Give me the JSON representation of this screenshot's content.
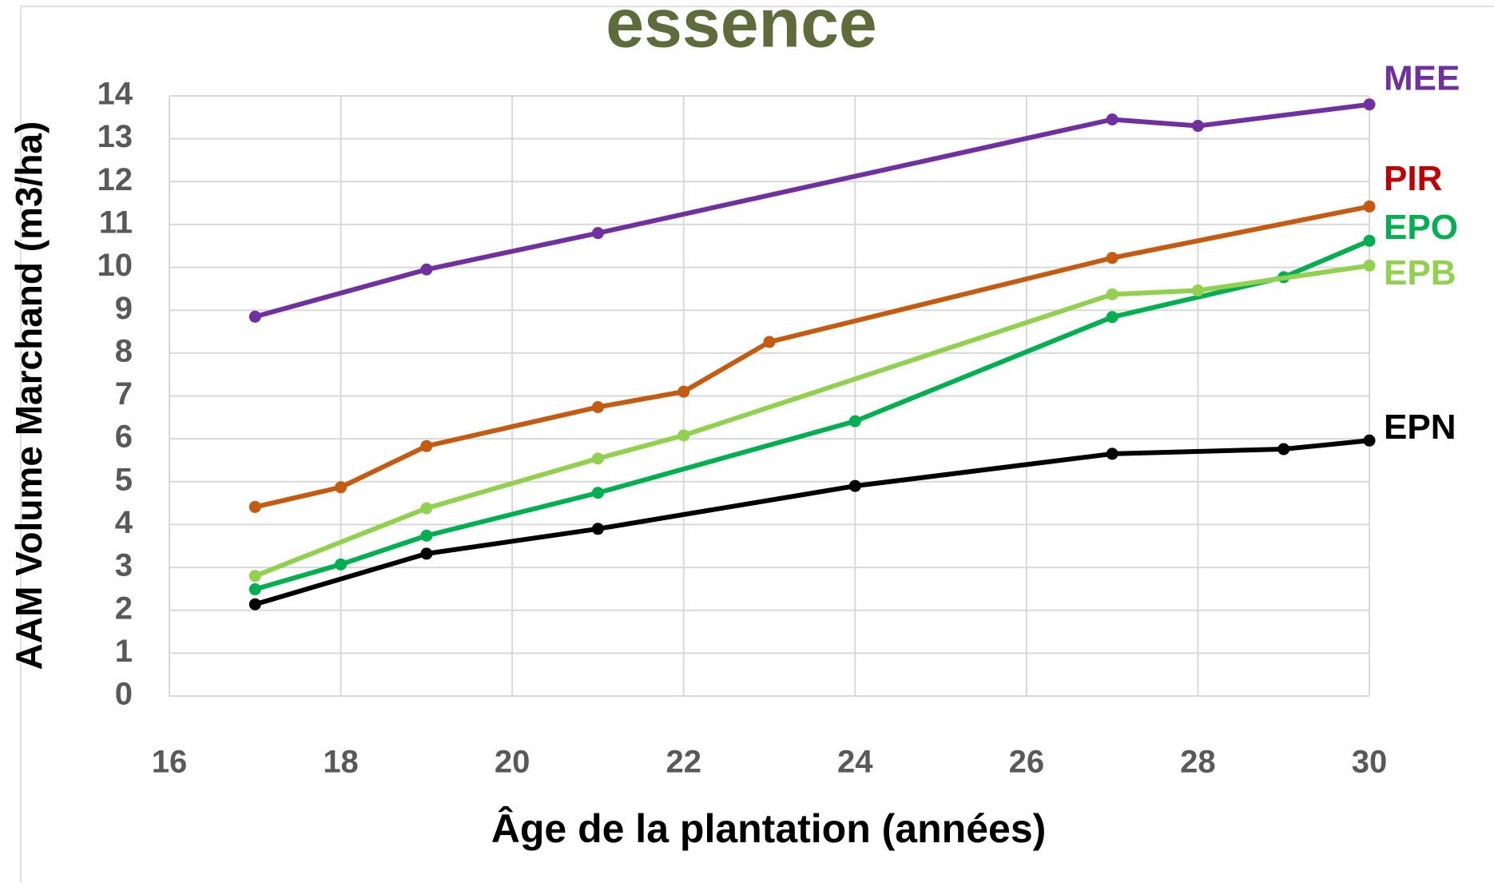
{
  "chart_data": {
    "type": "line",
    "title": "essence",
    "xlabel": "Âge de la plantation (années)",
    "ylabel": "AAM Volume Marchand (m3/ha)",
    "xlim": [
      16,
      30
    ],
    "xticks": [
      16,
      18,
      20,
      22,
      24,
      26,
      28,
      30
    ],
    "ylim": [
      0,
      14
    ],
    "yticks": [
      0,
      1,
      2,
      3,
      4,
      5,
      6,
      7,
      8,
      9,
      10,
      11,
      12,
      13,
      14
    ],
    "grid": true,
    "series": [
      {
        "name": "MEE",
        "color": "#7030a0",
        "label_color": "#7030a0",
        "x": [
          17,
          19,
          21,
          27,
          28,
          30
        ],
        "values": [
          8.85,
          9.95,
          10.8,
          13.45,
          13.3,
          13.8
        ]
      },
      {
        "name": "PIR",
        "color": "#c55a11",
        "label_color": "#c00000",
        "x": [
          17,
          18,
          19,
          21,
          22,
          23,
          27,
          30
        ],
        "values": [
          4.41,
          4.87,
          5.83,
          6.74,
          7.1,
          8.26,
          10.22,
          11.42
        ]
      },
      {
        "name": "EPO",
        "color": "#00b050",
        "label_color": "#00b050",
        "x": [
          17,
          18,
          19,
          21,
          24,
          27,
          29,
          30
        ],
        "values": [
          2.49,
          3.07,
          3.74,
          4.74,
          6.41,
          8.84,
          9.77,
          10.62
        ]
      },
      {
        "name": "EPB",
        "color": "#92d050",
        "label_color": "#92d050",
        "x": [
          17,
          19,
          21,
          22,
          27,
          28,
          30
        ],
        "values": [
          2.8,
          4.38,
          5.54,
          6.08,
          9.37,
          9.46,
          10.04
        ]
      },
      {
        "name": "EPN",
        "color": "#000000",
        "label_color": "#000000",
        "x": [
          17,
          19,
          21,
          24,
          27,
          29,
          30
        ],
        "values": [
          2.14,
          3.32,
          3.9,
          4.9,
          5.65,
          5.76,
          5.96
        ]
      }
    ]
  }
}
